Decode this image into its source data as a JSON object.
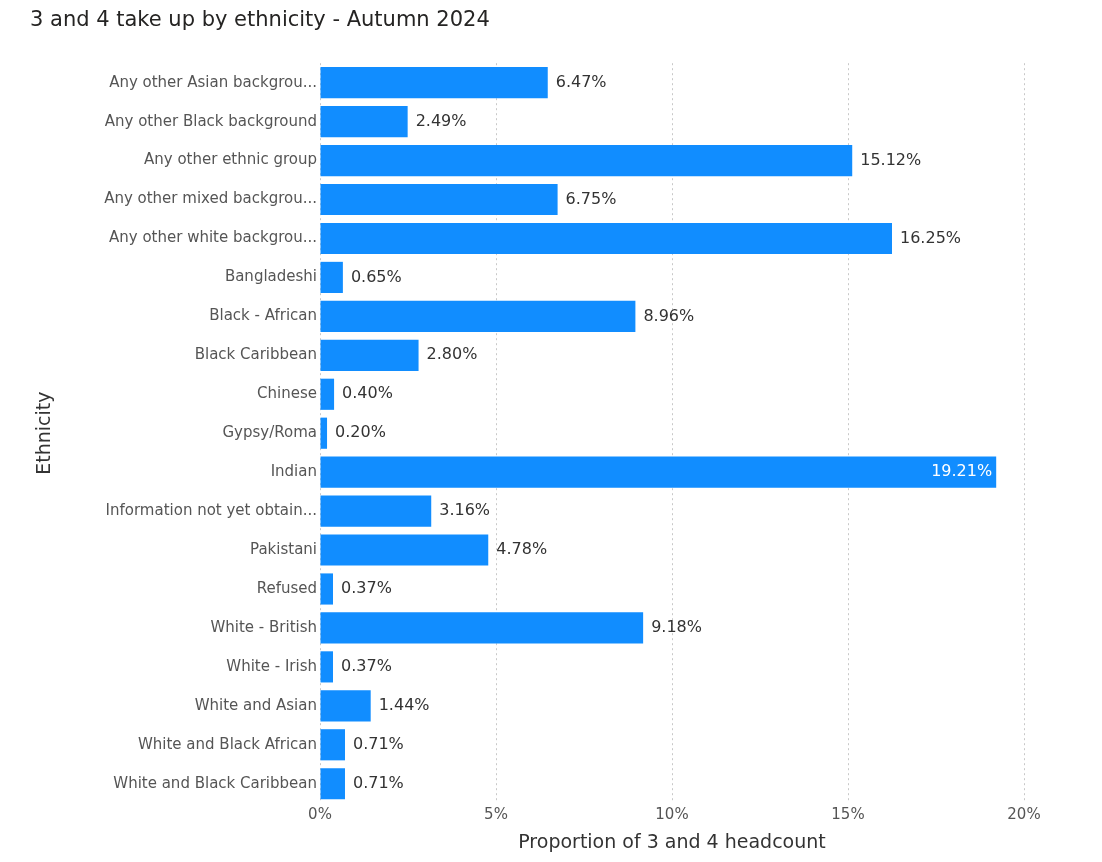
{
  "chart_data": {
    "type": "bar",
    "orientation": "horizontal",
    "title": "3 and 4 take up by ethnicity - Autumn 2024",
    "xlabel": "Proportion of 3 and 4 headcount",
    "ylabel": "Ethnicity",
    "categories": [
      "Any other Asian backgrou...",
      "Any other Black background",
      "Any other ethnic group",
      "Any other mixed backgrou...",
      "Any other white backgrou...",
      "Bangladeshi",
      "Black - African",
      "Black Caribbean",
      "Chinese",
      "Gypsy/Roma",
      "Indian",
      "Information not yet obtain...",
      "Pakistani",
      "Refused",
      "White - British",
      "White - Irish",
      "White and Asian",
      "White and Black African",
      "White and Black Caribbean"
    ],
    "values": [
      6.47,
      2.49,
      15.12,
      6.75,
      16.25,
      0.65,
      8.96,
      2.8,
      0.4,
      0.2,
      19.21,
      3.16,
      4.78,
      0.37,
      9.18,
      0.37,
      1.44,
      0.71,
      0.71
    ],
    "value_labels": [
      "6.47%",
      "2.49%",
      "15.12%",
      "6.75%",
      "16.25%",
      "0.65%",
      "8.96%",
      "2.80%",
      "0.40%",
      "0.20%",
      "19.21%",
      "3.16%",
      "4.78%",
      "0.37%",
      "9.18%",
      "0.37%",
      "1.44%",
      "0.71%",
      "0.71%"
    ],
    "color": "#118dff",
    "xlim": [
      0,
      20
    ],
    "xticks": [
      {
        "value": 0,
        "label": "0%"
      },
      {
        "value": 5,
        "label": "5%"
      },
      {
        "value": 10,
        "label": "10%"
      },
      {
        "value": 15,
        "label": "15%"
      },
      {
        "value": 20,
        "label": "20%"
      }
    ],
    "grid": "x",
    "legend": false
  }
}
